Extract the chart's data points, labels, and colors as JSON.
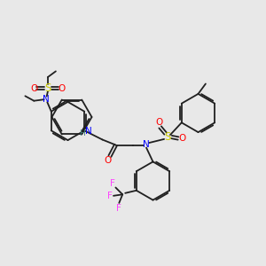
{
  "bg_color": "#e8e8e8",
  "bond_color": "#202020",
  "colors": {
    "N": "#0000ff",
    "O": "#ff0000",
    "S": "#cccc00",
    "F": "#ff44ff",
    "H": "#408080",
    "C": "#202020"
  },
  "figsize": [
    3.0,
    3.0
  ],
  "dpi": 100
}
